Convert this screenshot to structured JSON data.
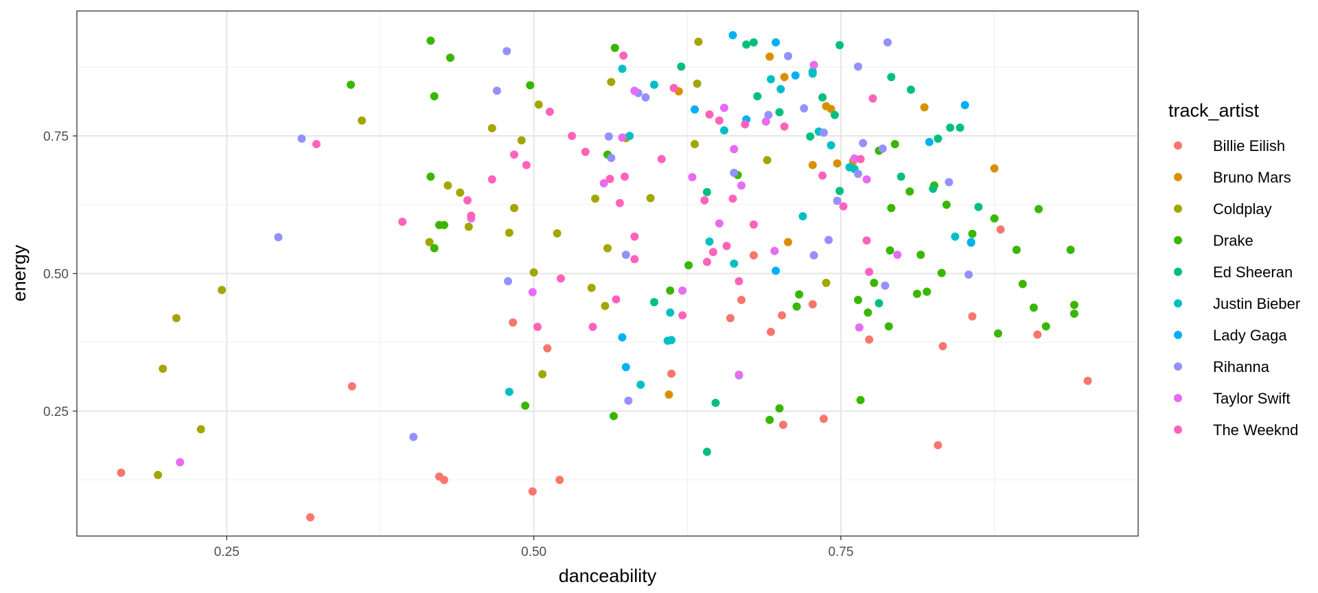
{
  "chart_data": {
    "type": "scatter",
    "xlabel": "danceability",
    "ylabel": "energy",
    "xlim": [
      0.128,
      0.992
    ],
    "ylim": [
      0.023,
      0.977
    ],
    "x_ticks": [
      0.25,
      0.5,
      0.75
    ],
    "x_tick_labels": [
      "0.25",
      "0.50",
      "0.75"
    ],
    "y_ticks": [
      0.25,
      0.5,
      0.75
    ],
    "y_tick_labels": [
      "0.25",
      "0.50",
      "0.75"
    ],
    "grid": true,
    "legend": {
      "title": "track_artist",
      "position": "right"
    },
    "series": [
      {
        "name": "Billie Eilish",
        "color": "#F8766D",
        "points": [
          [
            0.164,
            0.138
          ],
          [
            0.318,
            0.057
          ],
          [
            0.352,
            0.295
          ],
          [
            0.423,
            0.131
          ],
          [
            0.427,
            0.125
          ],
          [
            0.499,
            0.104
          ],
          [
            0.483,
            0.411
          ],
          [
            0.511,
            0.364
          ],
          [
            0.521,
            0.125
          ],
          [
            0.612,
            0.318
          ],
          [
            0.66,
            0.419
          ],
          [
            0.669,
            0.452
          ],
          [
            0.679,
            0.533
          ],
          [
            0.693,
            0.394
          ],
          [
            0.702,
            0.424
          ],
          [
            0.703,
            0.225
          ],
          [
            0.727,
            0.444
          ],
          [
            0.736,
            0.236
          ],
          [
            0.773,
            0.38
          ],
          [
            0.829,
            0.188
          ],
          [
            0.833,
            0.368
          ],
          [
            0.857,
            0.422
          ],
          [
            0.88,
            0.58
          ],
          [
            0.91,
            0.389
          ],
          [
            0.951,
            0.305
          ]
        ]
      },
      {
        "name": "Bruno Mars",
        "color": "#D89000",
        "points": [
          [
            0.61,
            0.28
          ],
          [
            0.618,
            0.831
          ],
          [
            0.692,
            0.894
          ],
          [
            0.704,
            0.857
          ],
          [
            0.707,
            0.557
          ],
          [
            0.727,
            0.697
          ],
          [
            0.738,
            0.804
          ],
          [
            0.742,
            0.799
          ],
          [
            0.747,
            0.7
          ],
          [
            0.76,
            0.704
          ],
          [
            0.818,
            0.802
          ],
          [
            0.875,
            0.691
          ]
        ]
      },
      {
        "name": "Coldplay",
        "color": "#A3A500",
        "points": [
          [
            0.194,
            0.134
          ],
          [
            0.198,
            0.327
          ],
          [
            0.209,
            0.419
          ],
          [
            0.229,
            0.217
          ],
          [
            0.246,
            0.47
          ],
          [
            0.36,
            0.778
          ],
          [
            0.415,
            0.557
          ],
          [
            0.43,
            0.66
          ],
          [
            0.44,
            0.647
          ],
          [
            0.447,
            0.585
          ],
          [
            0.466,
            0.764
          ],
          [
            0.48,
            0.574
          ],
          [
            0.484,
            0.619
          ],
          [
            0.49,
            0.742
          ],
          [
            0.5,
            0.502
          ],
          [
            0.504,
            0.807
          ],
          [
            0.507,
            0.317
          ],
          [
            0.519,
            0.573
          ],
          [
            0.547,
            0.474
          ],
          [
            0.55,
            0.636
          ],
          [
            0.558,
            0.441
          ],
          [
            0.56,
            0.546
          ],
          [
            0.563,
            0.848
          ],
          [
            0.575,
            0.746
          ],
          [
            0.595,
            0.637
          ],
          [
            0.631,
            0.735
          ],
          [
            0.633,
            0.845
          ],
          [
            0.634,
            0.921
          ],
          [
            0.69,
            0.706
          ],
          [
            0.738,
            0.483
          ]
        ]
      },
      {
        "name": "Drake",
        "color": "#39B600",
        "points": [
          [
            0.351,
            0.843
          ],
          [
            0.416,
            0.923
          ],
          [
            0.419,
            0.822
          ],
          [
            0.416,
            0.676
          ],
          [
            0.419,
            0.546
          ],
          [
            0.423,
            0.588
          ],
          [
            0.427,
            0.588
          ],
          [
            0.432,
            0.892
          ],
          [
            0.497,
            0.842
          ],
          [
            0.493,
            0.26
          ],
          [
            0.56,
            0.716
          ],
          [
            0.566,
            0.91
          ],
          [
            0.565,
            0.241
          ],
          [
            0.611,
            0.469
          ],
          [
            0.626,
            0.515
          ],
          [
            0.666,
            0.679
          ],
          [
            0.692,
            0.234
          ],
          [
            0.7,
            0.255
          ],
          [
            0.714,
            0.44
          ],
          [
            0.716,
            0.462
          ],
          [
            0.764,
            0.452
          ],
          [
            0.766,
            0.27
          ],
          [
            0.772,
            0.429
          ],
          [
            0.777,
            0.483
          ],
          [
            0.781,
            0.723
          ],
          [
            0.789,
            0.404
          ],
          [
            0.791,
            0.619
          ],
          [
            0.794,
            0.735
          ],
          [
            0.806,
            0.649
          ],
          [
            0.812,
            0.463
          ],
          [
            0.815,
            0.534
          ],
          [
            0.82,
            0.467
          ],
          [
            0.826,
            0.66
          ],
          [
            0.832,
            0.501
          ],
          [
            0.836,
            0.625
          ],
          [
            0.857,
            0.572
          ],
          [
            0.875,
            0.6
          ],
          [
            0.878,
            0.391
          ],
          [
            0.893,
            0.543
          ],
          [
            0.898,
            0.481
          ],
          [
            0.907,
            0.438
          ],
          [
            0.911,
            0.617
          ],
          [
            0.917,
            0.404
          ],
          [
            0.937,
            0.543
          ],
          [
            0.94,
            0.443
          ],
          [
            0.94,
            0.427
          ],
          [
            0.79,
            0.542
          ]
        ]
      },
      {
        "name": "Ed Sheeran",
        "color": "#00BF7D",
        "points": [
          [
            0.598,
            0.448
          ],
          [
            0.62,
            0.876
          ],
          [
            0.641,
            0.648
          ],
          [
            0.648,
            0.265
          ],
          [
            0.641,
            0.176
          ],
          [
            0.682,
            0.822
          ],
          [
            0.7,
            0.793
          ],
          [
            0.725,
            0.749
          ],
          [
            0.735,
            0.82
          ],
          [
            0.745,
            0.788
          ],
          [
            0.749,
            0.915
          ],
          [
            0.749,
            0.65
          ],
          [
            0.791,
            0.857
          ],
          [
            0.799,
            0.676
          ],
          [
            0.807,
            0.834
          ],
          [
            0.825,
            0.654
          ],
          [
            0.829,
            0.745
          ],
          [
            0.839,
            0.765
          ],
          [
            0.847,
            0.765
          ],
          [
            0.856,
            0.556
          ],
          [
            0.862,
            0.621
          ],
          [
            0.781,
            0.446
          ],
          [
            0.679,
            0.92
          ],
          [
            0.673,
            0.916
          ]
        ]
      },
      {
        "name": "Justin Bieber",
        "color": "#00BFC4",
        "points": [
          [
            0.48,
            0.285
          ],
          [
            0.572,
            0.872
          ],
          [
            0.578,
            0.75
          ],
          [
            0.587,
            0.298
          ],
          [
            0.598,
            0.843
          ],
          [
            0.609,
            0.378
          ],
          [
            0.611,
            0.429
          ],
          [
            0.612,
            0.379
          ],
          [
            0.643,
            0.558
          ],
          [
            0.655,
            0.76
          ],
          [
            0.663,
            0.518
          ],
          [
            0.693,
            0.853
          ],
          [
            0.701,
            0.835
          ],
          [
            0.719,
            0.604
          ],
          [
            0.727,
            0.867
          ],
          [
            0.732,
            0.758
          ],
          [
            0.742,
            0.733
          ],
          [
            0.757,
            0.693
          ],
          [
            0.761,
            0.69
          ],
          [
            0.843,
            0.567
          ],
          [
            0.727,
            0.863
          ]
        ]
      },
      {
        "name": "Lady Gaga",
        "color": "#00B0F6",
        "points": [
          [
            0.572,
            0.384
          ],
          [
            0.575,
            0.33
          ],
          [
            0.631,
            0.798
          ],
          [
            0.662,
            0.933
          ],
          [
            0.673,
            0.78
          ],
          [
            0.697,
            0.92
          ],
          [
            0.697,
            0.505
          ],
          [
            0.713,
            0.86
          ],
          [
            0.822,
            0.739
          ],
          [
            0.851,
            0.806
          ],
          [
            0.856,
            0.557
          ]
        ]
      },
      {
        "name": "Rihanna",
        "color": "#9590FF",
        "points": [
          [
            0.292,
            0.566
          ],
          [
            0.311,
            0.745
          ],
          [
            0.402,
            0.203
          ],
          [
            0.47,
            0.832
          ],
          [
            0.478,
            0.904
          ],
          [
            0.479,
            0.486
          ],
          [
            0.561,
            0.749
          ],
          [
            0.563,
            0.71
          ],
          [
            0.575,
            0.534
          ],
          [
            0.577,
            0.269
          ],
          [
            0.585,
            0.828
          ],
          [
            0.591,
            0.82
          ],
          [
            0.663,
            0.683
          ],
          [
            0.667,
            0.315
          ],
          [
            0.691,
            0.788
          ],
          [
            0.707,
            0.895
          ],
          [
            0.72,
            0.8
          ],
          [
            0.728,
            0.533
          ],
          [
            0.736,
            0.756
          ],
          [
            0.74,
            0.561
          ],
          [
            0.747,
            0.632
          ],
          [
            0.764,
            0.876
          ],
          [
            0.764,
            0.681
          ],
          [
            0.768,
            0.737
          ],
          [
            0.784,
            0.727
          ],
          [
            0.788,
            0.92
          ],
          [
            0.786,
            0.478
          ],
          [
            0.838,
            0.666
          ],
          [
            0.854,
            0.498
          ]
        ]
      },
      {
        "name": "Taylor Swift",
        "color": "#E76BF3",
        "points": [
          [
            0.212,
            0.157
          ],
          [
            0.449,
            0.6
          ],
          [
            0.499,
            0.466
          ],
          [
            0.557,
            0.664
          ],
          [
            0.572,
            0.747
          ],
          [
            0.582,
            0.832
          ],
          [
            0.621,
            0.469
          ],
          [
            0.629,
            0.675
          ],
          [
            0.651,
            0.591
          ],
          [
            0.655,
            0.801
          ],
          [
            0.663,
            0.726
          ],
          [
            0.667,
            0.316
          ],
          [
            0.669,
            0.66
          ],
          [
            0.689,
            0.776
          ],
          [
            0.696,
            0.541
          ],
          [
            0.728,
            0.879
          ],
          [
            0.761,
            0.709
          ],
          [
            0.765,
            0.402
          ],
          [
            0.771,
            0.671
          ],
          [
            0.796,
            0.534
          ]
        ]
      },
      {
        "name": "The Weeknd",
        "color": "#FF62BC",
        "points": [
          [
            0.323,
            0.735
          ],
          [
            0.393,
            0.594
          ],
          [
            0.446,
            0.633
          ],
          [
            0.449,
            0.605
          ],
          [
            0.466,
            0.671
          ],
          [
            0.484,
            0.716
          ],
          [
            0.494,
            0.697
          ],
          [
            0.503,
            0.403
          ],
          [
            0.513,
            0.794
          ],
          [
            0.522,
            0.491
          ],
          [
            0.531,
            0.75
          ],
          [
            0.542,
            0.721
          ],
          [
            0.548,
            0.403
          ],
          [
            0.562,
            0.672
          ],
          [
            0.567,
            0.453
          ],
          [
            0.57,
            0.628
          ],
          [
            0.573,
            0.896
          ],
          [
            0.582,
            0.567
          ],
          [
            0.582,
            0.526
          ],
          [
            0.604,
            0.708
          ],
          [
            0.614,
            0.837
          ],
          [
            0.621,
            0.424
          ],
          [
            0.641,
            0.521
          ],
          [
            0.643,
            0.789
          ],
          [
            0.646,
            0.539
          ],
          [
            0.651,
            0.778
          ],
          [
            0.657,
            0.55
          ],
          [
            0.662,
            0.636
          ],
          [
            0.667,
            0.486
          ],
          [
            0.672,
            0.771
          ],
          [
            0.679,
            0.589
          ],
          [
            0.704,
            0.767
          ],
          [
            0.735,
            0.678
          ],
          [
            0.752,
            0.622
          ],
          [
            0.771,
            0.56
          ],
          [
            0.773,
            0.503
          ],
          [
            0.776,
            0.818
          ],
          [
            0.766,
            0.708
          ],
          [
            0.639,
            0.633
          ],
          [
            0.574,
            0.676
          ]
        ]
      }
    ]
  }
}
